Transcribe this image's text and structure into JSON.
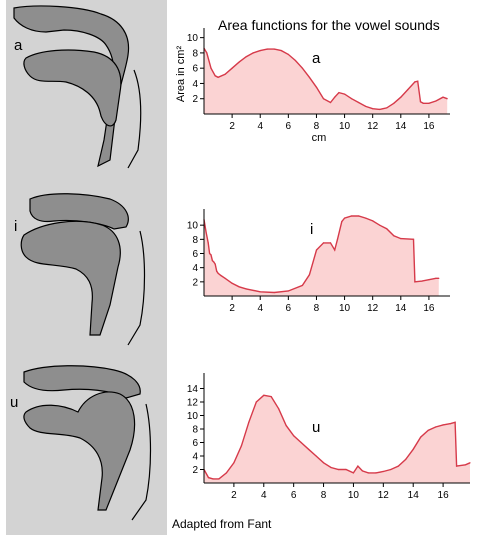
{
  "title": "Area functions for the vowel sounds",
  "credit": "Adapted from Fant",
  "tract_labels": [
    "a",
    "i",
    "u"
  ],
  "colors": {
    "panel": "#d3d3d3",
    "tissue": "#8e8e8e",
    "fill": "#fbd3d3",
    "line": "#d63a4a"
  },
  "chart_data": [
    {
      "type": "area",
      "title": "a",
      "xlabel": "cm",
      "ylabel": "Area in cm²",
      "xlim": [
        0,
        17.5
      ],
      "ylim": [
        0,
        11
      ],
      "x_ticks": [
        2,
        4,
        6,
        8,
        10,
        12,
        14,
        16
      ],
      "y_ticks": [
        2,
        4,
        6,
        8,
        10
      ],
      "x_tick_labels": [
        "2",
        "4",
        "6",
        "8",
        "10",
        "12",
        "14",
        "16"
      ],
      "y_tick_labels": [
        "2",
        "4",
        "6",
        "8",
        "10"
      ],
      "series": [
        {
          "x": [
            0,
            0.2,
            0.5,
            0.8,
            1,
            1.5,
            2,
            2.5,
            3,
            3.5,
            4,
            4.5,
            5,
            5.5,
            6,
            6.5,
            7,
            7.5,
            8,
            8.5,
            9,
            9.3,
            9.6,
            10,
            10.5,
            11,
            11.5,
            12,
            12.5,
            13,
            13.5,
            14,
            14.5,
            15,
            15.2,
            15.4,
            15.6,
            16,
            16.5,
            17,
            17.3
          ],
          "y": [
            8.6,
            8.0,
            6.0,
            5.0,
            4.8,
            5.2,
            6.0,
            6.8,
            7.5,
            8.0,
            8.3,
            8.5,
            8.5,
            8.3,
            7.8,
            7.0,
            6.0,
            4.8,
            3.5,
            2.0,
            1.5,
            2.2,
            2.8,
            2.6,
            2.0,
            1.5,
            1.0,
            0.7,
            0.6,
            0.8,
            1.4,
            2.2,
            3.2,
            4.2,
            4.3,
            1.6,
            1.4,
            1.4,
            1.7,
            2.2,
            2.0
          ]
        }
      ]
    },
    {
      "type": "area",
      "title": "i",
      "xlim": [
        0,
        17.5
      ],
      "ylim": [
        0,
        12
      ],
      "x_ticks": [
        2,
        4,
        6,
        8,
        10,
        12,
        14,
        16
      ],
      "y_ticks": [
        2,
        4,
        6,
        8,
        10
      ],
      "x_tick_labels": [
        "2",
        "4",
        "6",
        "8",
        "10",
        "12",
        "14",
        "16"
      ],
      "y_tick_labels": [
        "2",
        "4",
        "6",
        "8",
        "10"
      ],
      "series": [
        {
          "x": [
            0,
            0.15,
            0.3,
            0.4,
            0.5,
            0.6,
            0.7,
            0.8,
            0.9,
            1.0,
            1.2,
            1.5,
            2,
            2.5,
            3,
            4,
            5,
            6,
            7,
            7.5,
            8,
            8.5,
            9,
            9.3,
            9.5,
            9.8,
            10,
            10.5,
            11,
            11.5,
            12,
            12.5,
            13,
            13.5,
            14,
            14.9,
            15.0,
            15.5,
            16,
            16.5,
            16.7
          ],
          "y": [
            10.8,
            9.0,
            7.5,
            6.0,
            5.8,
            5.0,
            4.8,
            4.5,
            3.5,
            3.2,
            2.9,
            2.5,
            1.8,
            1.3,
            1.0,
            0.6,
            0.5,
            0.7,
            1.5,
            3.0,
            6.5,
            7.5,
            7.5,
            6.5,
            8.0,
            10.5,
            11.0,
            11.3,
            11.3,
            11.0,
            10.6,
            10.0,
            9.5,
            8.5,
            8.1,
            8.0,
            2.0,
            2.1,
            2.3,
            2.5,
            2.5
          ]
        }
      ]
    },
    {
      "type": "area",
      "title": "u",
      "xlim": [
        0,
        17.8
      ],
      "ylim": [
        0,
        16
      ],
      "x_ticks": [
        2,
        4,
        6,
        8,
        10,
        12,
        14,
        16
      ],
      "y_ticks": [
        2,
        4,
        6,
        8,
        10,
        12,
        14
      ],
      "x_tick_labels": [
        "2",
        "4",
        "6",
        "8",
        "10",
        "12",
        "14",
        "16"
      ],
      "y_tick_labels": [
        "2",
        "4",
        "6",
        "8",
        "10",
        "12",
        "14"
      ],
      "series": [
        {
          "x": [
            0,
            0.3,
            0.6,
            1,
            1.5,
            2,
            2.5,
            3,
            3.5,
            4,
            4.5,
            5,
            5.5,
            6,
            6.5,
            7,
            7.5,
            8,
            8.5,
            9,
            9.5,
            10,
            10.3,
            10.6,
            11,
            11.5,
            12,
            12.5,
            13,
            13.5,
            14,
            14.5,
            15,
            15.5,
            16,
            16.5,
            16.8,
            16.9,
            17.5,
            17.8
          ],
          "y": [
            2.0,
            0.8,
            0.6,
            0.6,
            1.5,
            3.0,
            5.5,
            9.0,
            12.0,
            13.0,
            12.8,
            11.0,
            8.5,
            7.0,
            6.0,
            5.0,
            4.0,
            3.0,
            2.3,
            2.0,
            2.0,
            1.5,
            2.5,
            1.8,
            1.5,
            1.5,
            1.7,
            2.0,
            2.5,
            3.5,
            5.0,
            6.8,
            7.8,
            8.3,
            8.6,
            8.8,
            9.0,
            2.5,
            2.7,
            3.0
          ]
        }
      ]
    }
  ]
}
